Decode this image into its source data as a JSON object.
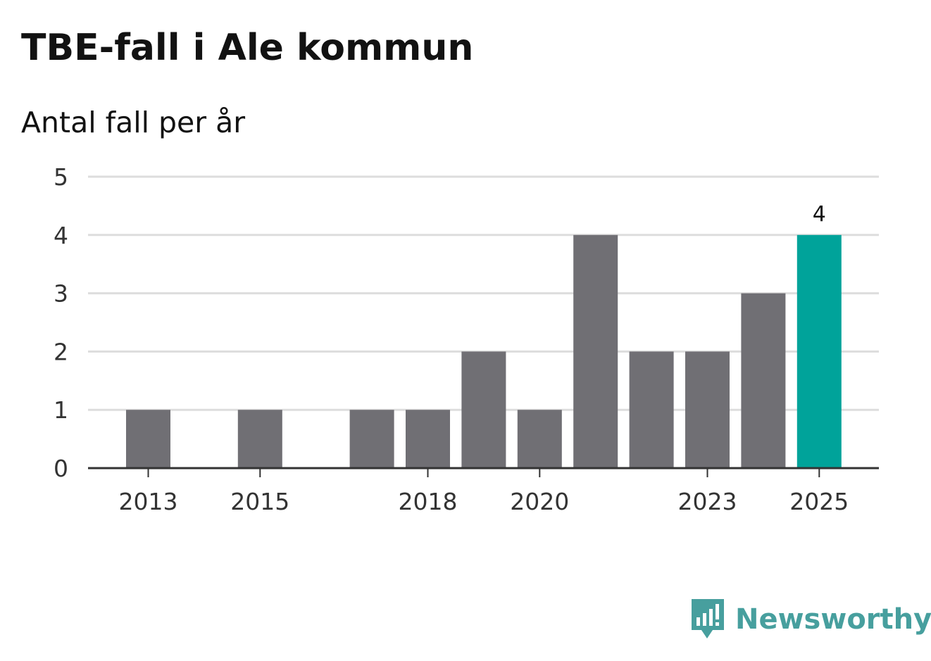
{
  "chart_data": {
    "type": "bar",
    "title": "TBE-fall i Ale kommun",
    "subtitle": "Antal fall per år",
    "xlabel": "",
    "ylabel": "",
    "categories": [
      "2013",
      "2014",
      "2015",
      "2016",
      "2017",
      "2018",
      "2019",
      "2020",
      "2021",
      "2022",
      "2023",
      "2024",
      "2025"
    ],
    "values": [
      1,
      0,
      1,
      0,
      1,
      1,
      2,
      1,
      4,
      2,
      2,
      3,
      4
    ],
    "x_tick_labels": [
      "2013",
      "2015",
      "2018",
      "2020",
      "2023",
      "2025"
    ],
    "y_ticks": [
      "0",
      "1",
      "2",
      "3",
      "4",
      "5"
    ],
    "ylim": [
      0,
      5
    ],
    "grid": true,
    "highlight_category": "2025",
    "highlight_label": "4",
    "colors": {
      "bar": "#706f74",
      "highlight": "#00a39a",
      "grid": "#dddddd",
      "axis": "#333333"
    }
  },
  "branding": {
    "name": "Newsworthy",
    "icon": "newsworthy-logo-icon",
    "color": "#479f9e"
  }
}
